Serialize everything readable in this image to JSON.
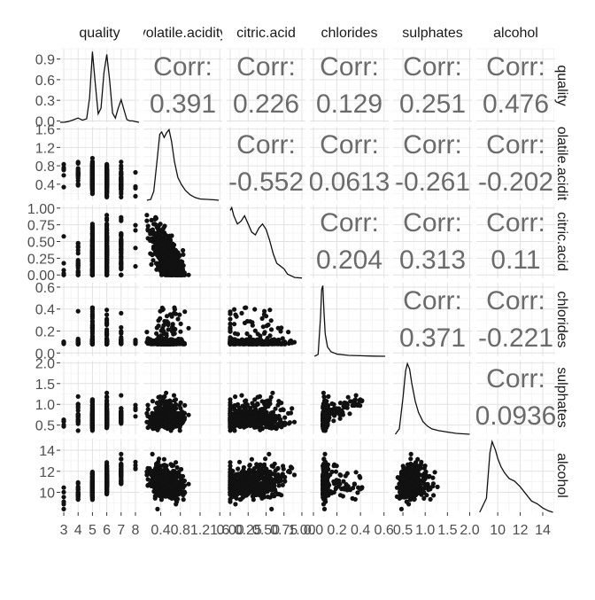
{
  "chart_data": {
    "type": "scatter",
    "variables": [
      "quality",
      "volatile.acidity",
      "citric.acid",
      "chlorides",
      "sulphates",
      "alcohol"
    ],
    "strip_labels": {
      "top": [
        "quality",
        "volatile.acidity",
        "citric.acid",
        "chlorides",
        "sulphates",
        "alcohol"
      ],
      "right": [
        "quality",
        "volatile.acidity",
        "citric.acid",
        "chlorides",
        "sulphates",
        "alcohol"
      ]
    },
    "corr_label": "Corr:",
    "correlations": [
      {
        "row": 0,
        "col": 1,
        "value": "0.391"
      },
      {
        "row": 0,
        "col": 2,
        "value": "0.226"
      },
      {
        "row": 0,
        "col": 3,
        "value": "0.129"
      },
      {
        "row": 0,
        "col": 4,
        "value": "0.251"
      },
      {
        "row": 0,
        "col": 5,
        "value": "0.476"
      },
      {
        "row": 1,
        "col": 2,
        "value": "-0.552"
      },
      {
        "row": 1,
        "col": 3,
        "value": "0.0613"
      },
      {
        "row": 1,
        "col": 4,
        "value": "-0.261"
      },
      {
        "row": 1,
        "col": 5,
        "value": "-0.202"
      },
      {
        "row": 2,
        "col": 3,
        "value": "0.204"
      },
      {
        "row": 2,
        "col": 4,
        "value": "0.313"
      },
      {
        "row": 2,
        "col": 5,
        "value": "0.11"
      },
      {
        "row": 3,
        "col": 4,
        "value": "0.371"
      },
      {
        "row": 3,
        "col": 5,
        "value": "-0.221"
      },
      {
        "row": 4,
        "col": 5,
        "value": "0.0936"
      }
    ],
    "y_ticks": [
      [
        "0.0",
        "0.3",
        "0.6",
        "0.9"
      ],
      [
        "0.4",
        "0.8",
        "1.2",
        "1.6"
      ],
      [
        "0.00",
        "0.25",
        "0.50",
        "0.75",
        "1.00"
      ],
      [
        "0.0",
        "0.2",
        "0.4",
        "0.6"
      ],
      [
        "0.5",
        "1.0",
        "1.5",
        "2.0"
      ],
      [
        "10",
        "12",
        "14"
      ]
    ],
    "x_ticks": [
      [
        "3",
        "4",
        "5",
        "6",
        "7",
        "8"
      ],
      [
        "0.4",
        "0.8",
        "1.2",
        "1.6"
      ],
      [
        "0.00",
        "0.25",
        "0.50",
        "0.75",
        "1.00"
      ],
      [
        "0.0",
        "0.2",
        "0.4",
        "0.6"
      ],
      [
        "0.5",
        "1.0",
        "1.5",
        "2.0"
      ],
      [
        "10",
        "12",
        "14"
      ]
    ],
    "x_ranges": [
      [
        2.75,
        8.25
      ],
      [
        0.05,
        1.65
      ],
      [
        -0.05,
        1.05
      ],
      [
        -0.03,
        0.64
      ],
      [
        0.28,
        2.05
      ],
      [
        8.1,
        15.1
      ]
    ],
    "y_ranges": [
      [
        -0.02,
        1.05
      ],
      [
        0.05,
        1.65
      ],
      [
        -0.05,
        1.05
      ],
      [
        -0.03,
        0.64
      ],
      [
        0.28,
        2.05
      ],
      [
        8.1,
        15.1
      ]
    ],
    "grid": true,
    "density_curves": [
      {
        "variable": "quality",
        "x": [
          2.75,
          3.0,
          3.3,
          3.6,
          4.0,
          4.3,
          4.6,
          4.8,
          5.0,
          5.2,
          5.4,
          5.6,
          5.8,
          6.0,
          6.2,
          6.4,
          6.6,
          6.8,
          7.0,
          7.2,
          7.4,
          7.6,
          7.8,
          8.0,
          8.25
        ],
        "y": [
          0.0,
          0.0,
          0.01,
          0.03,
          0.06,
          0.03,
          0.05,
          0.35,
          1.0,
          0.55,
          0.12,
          0.2,
          0.7,
          0.96,
          0.6,
          0.13,
          0.06,
          0.2,
          0.32,
          0.18,
          0.04,
          0.02,
          0.02,
          0.01,
          0.0
        ]
      },
      {
        "variable": "volatile.acidity",
        "x": [
          0.12,
          0.2,
          0.26,
          0.32,
          0.38,
          0.42,
          0.47,
          0.52,
          0.57,
          0.62,
          0.68,
          0.75,
          0.82,
          0.9,
          1.0,
          1.1,
          1.2,
          1.35,
          1.5,
          1.58
        ],
        "y": [
          0.0,
          0.02,
          0.2,
          0.8,
          1.45,
          1.5,
          1.38,
          1.48,
          1.55,
          1.3,
          0.85,
          0.5,
          0.35,
          0.22,
          0.12,
          0.06,
          0.03,
          0.02,
          0.01,
          0.0
        ]
      },
      {
        "variable": "citric.acid",
        "x": [
          0.0,
          0.02,
          0.05,
          0.1,
          0.15,
          0.2,
          0.25,
          0.3,
          0.35,
          0.4,
          0.45,
          0.5,
          0.55,
          0.6,
          0.65,
          0.7,
          0.75,
          0.8,
          0.9,
          1.0
        ],
        "y": [
          2.5,
          2.6,
          2.3,
          2.0,
          2.1,
          2.3,
          2.0,
          1.7,
          1.6,
          1.85,
          2.0,
          1.8,
          1.4,
          0.9,
          0.55,
          0.45,
          0.35,
          0.15,
          0.03,
          0.01
        ]
      },
      {
        "variable": "chlorides",
        "x": [
          0.01,
          0.04,
          0.06,
          0.07,
          0.08,
          0.09,
          0.1,
          0.12,
          0.15,
          0.2,
          0.3,
          0.4,
          0.5,
          0.61
        ],
        "y": [
          0.0,
          0.5,
          10.5,
          18.0,
          19.0,
          12.0,
          6.0,
          2.5,
          1.2,
          0.6,
          0.25,
          0.15,
          0.05,
          0.0
        ]
      },
      {
        "variable": "sulphates",
        "x": [
          0.33,
          0.42,
          0.5,
          0.56,
          0.6,
          0.65,
          0.7,
          0.78,
          0.85,
          0.95,
          1.05,
          1.15,
          1.3,
          1.5,
          1.7,
          2.0
        ],
        "y": [
          0.0,
          0.3,
          2.0,
          3.5,
          3.9,
          3.6,
          2.8,
          1.8,
          1.2,
          0.7,
          0.45,
          0.3,
          0.2,
          0.12,
          0.05,
          0.0
        ]
      },
      {
        "variable": "alcohol",
        "x": [
          8.4,
          9.0,
          9.3,
          9.5,
          9.8,
          10.0,
          10.3,
          10.6,
          11.0,
          11.5,
          12.0,
          12.5,
          13.0,
          13.5,
          14.0,
          14.5,
          14.9
        ],
        "y": [
          0.0,
          0.1,
          0.42,
          0.5,
          0.44,
          0.38,
          0.32,
          0.28,
          0.24,
          0.22,
          0.18,
          0.13,
          0.08,
          0.06,
          0.03,
          0.01,
          0.0
        ]
      }
    ]
  }
}
